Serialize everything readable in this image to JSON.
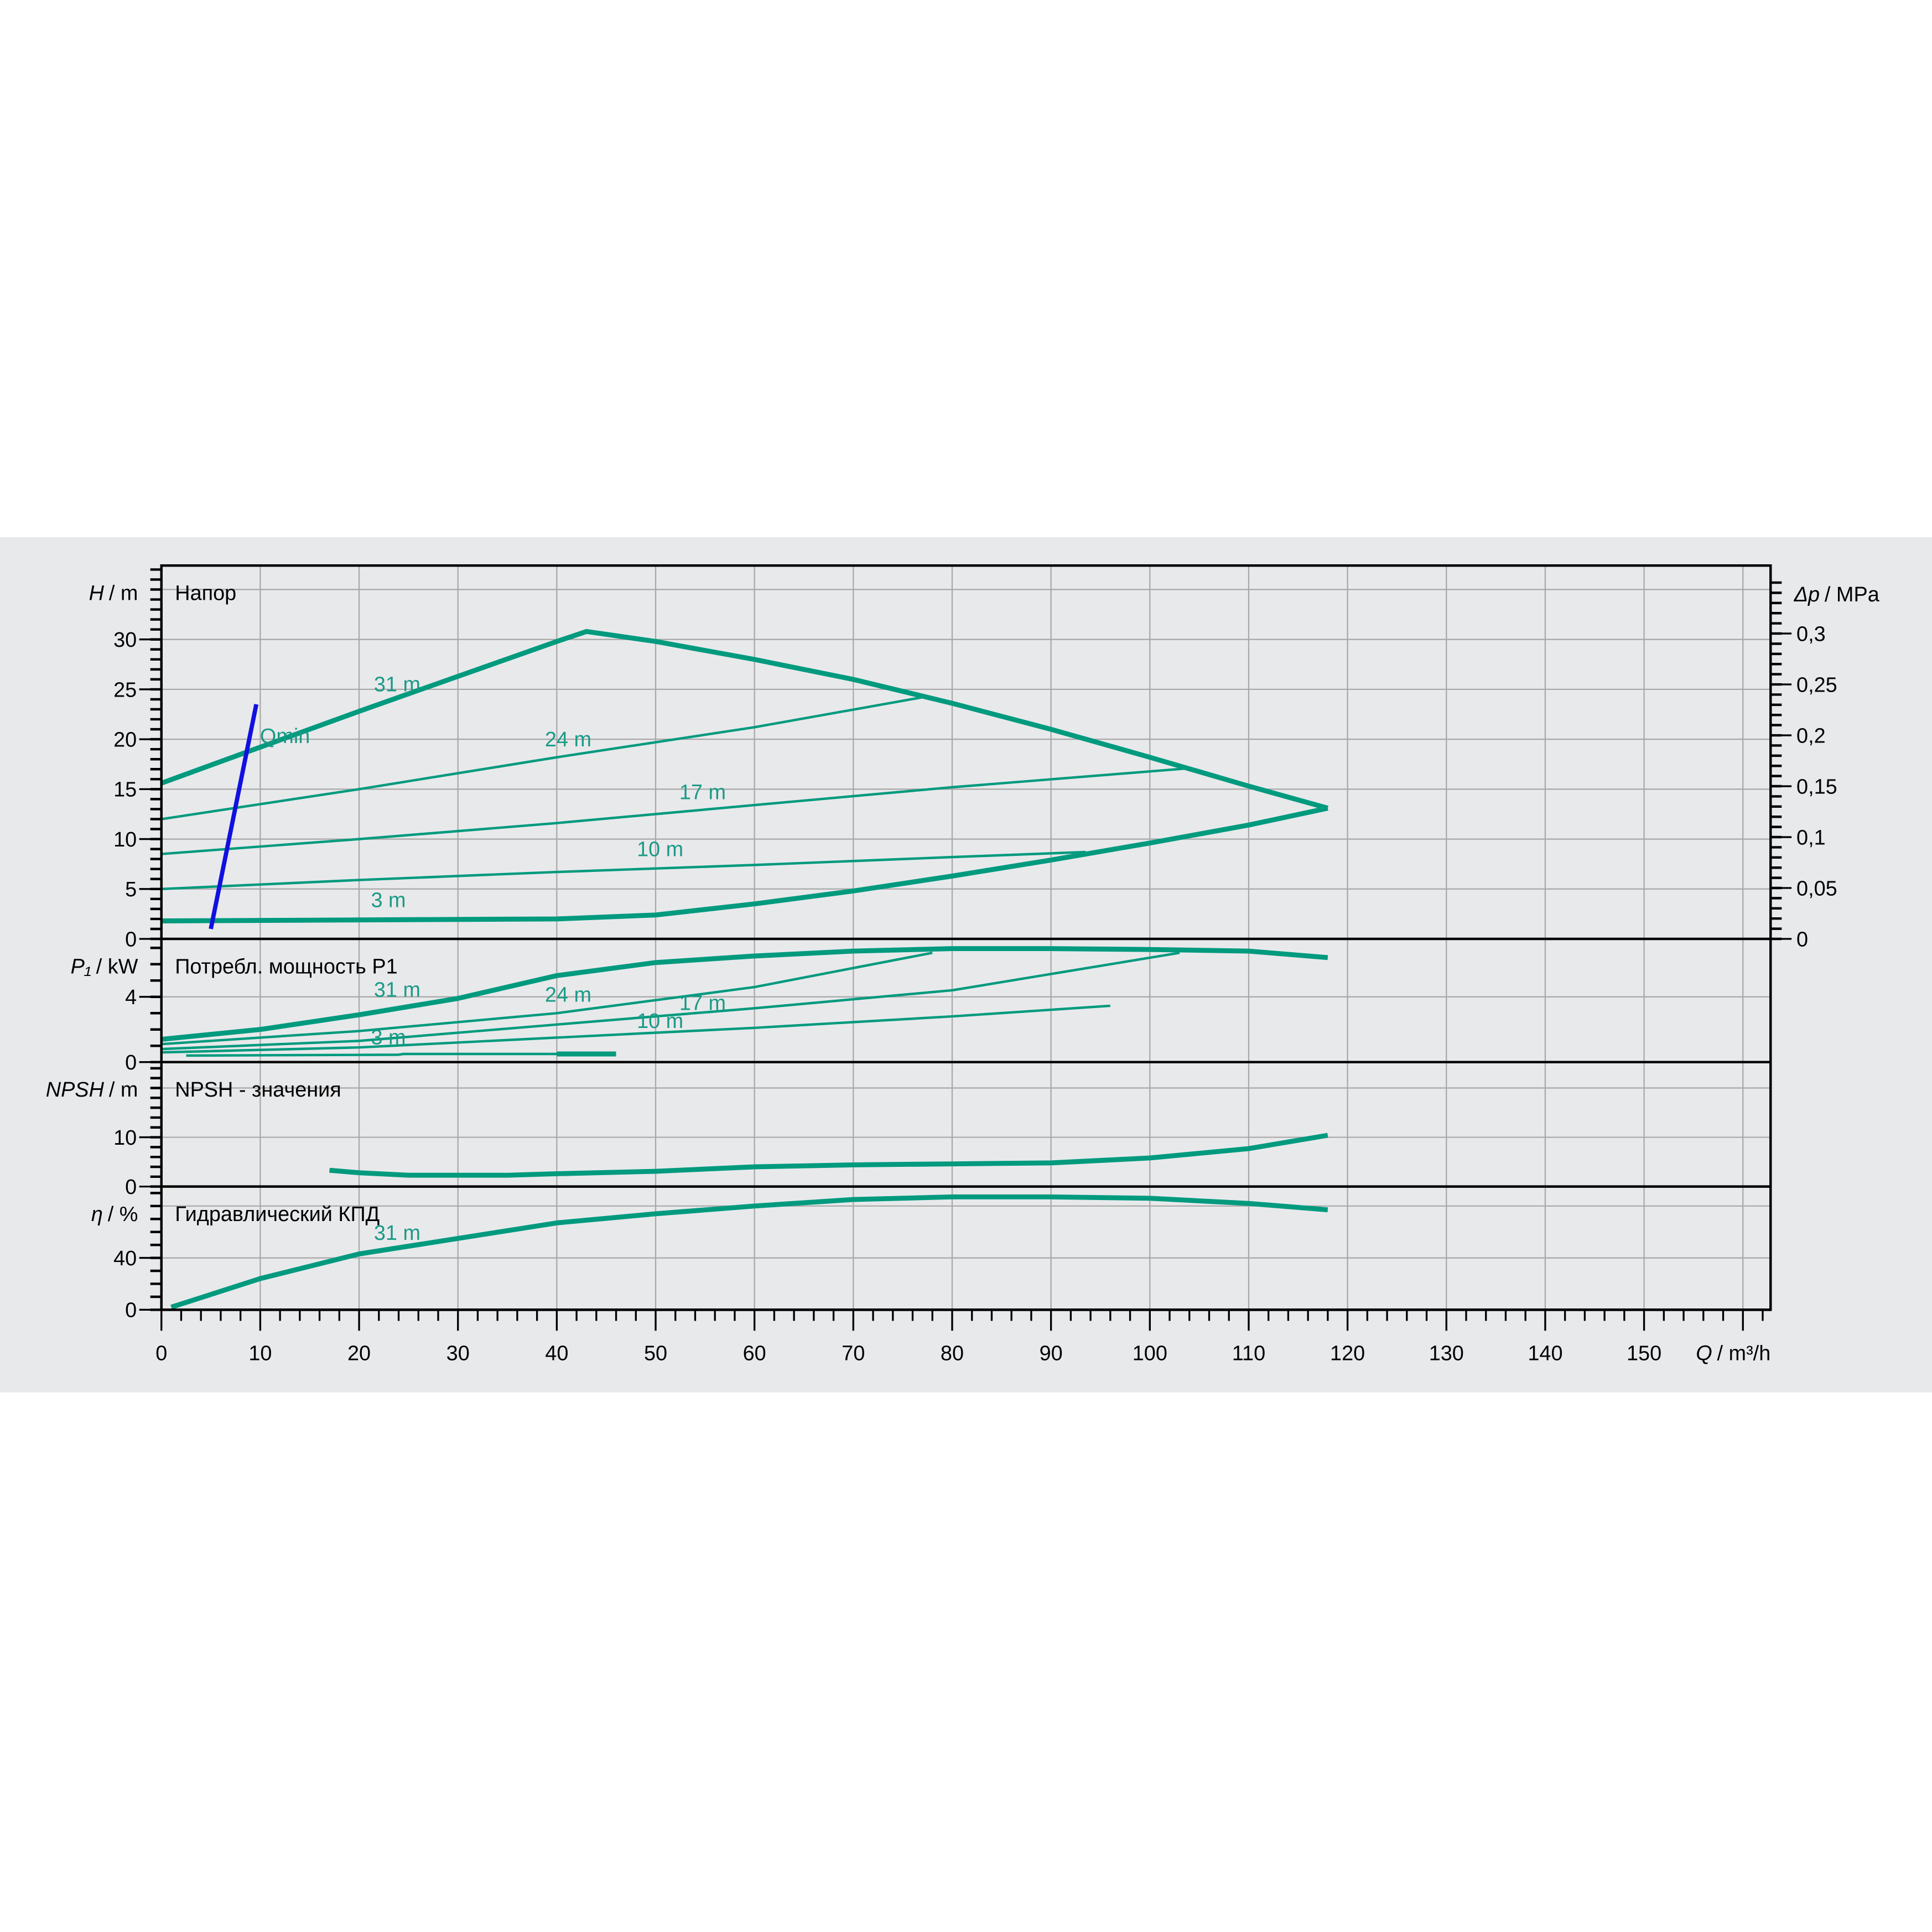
{
  "colors": {
    "curve": "#009a7e",
    "qmin": "#1010e0",
    "grid": "#a8a8a8",
    "panel_bg": "#e8e9eb"
  },
  "chart_data": {
    "type": "line",
    "x_axis": {
      "label_symbol": "Q",
      "label_unit": "/ m³/h",
      "range": [
        0,
        162.8
      ],
      "ticks": [
        0,
        10,
        20,
        30,
        40,
        50,
        60,
        70,
        80,
        90,
        100,
        110,
        120,
        130,
        140,
        150
      ],
      "grid": true
    },
    "panels": [
      {
        "id": "head",
        "title": "Напор",
        "ylabel_symbol": "H",
        "ylabel_unit": "/ m",
        "ylim": [
          0,
          37.4
        ],
        "ticks": [
          0,
          5,
          10,
          15,
          20,
          25,
          30
        ],
        "minor": 1,
        "grid_step": 5,
        "right_axis": {
          "label_symbol": "Δp",
          "label_unit": "/ MPa",
          "ticks": [
            "0",
            "0,05",
            "0,1",
            "0,15",
            "0,2",
            "0,25",
            "0,3"
          ],
          "values": [
            0,
            0.05,
            0.1,
            0.15,
            0.2,
            0.25,
            0.3
          ]
        },
        "series": [
          {
            "name": "31 m",
            "thick": true,
            "points": [
              [
                0,
                15.6
              ],
              [
                10,
                19.2
              ],
              [
                20,
                22.8
              ],
              [
                30,
                26.3
              ],
              [
                40,
                29.8
              ],
              [
                43,
                30.8
              ],
              [
                50,
                29.8
              ],
              [
                60,
                28
              ],
              [
                70,
                26
              ],
              [
                80,
                23.6
              ],
              [
                90,
                21
              ],
              [
                100,
                18.2
              ],
              [
                110,
                15.3
              ],
              [
                118,
                13.1
              ]
            ]
          },
          {
            "name": "24 m",
            "thick": false,
            "points": [
              [
                0,
                12
              ],
              [
                20,
                15
              ],
              [
                40,
                18.2
              ],
              [
                60,
                21.2
              ],
              [
                77,
                24.2
              ]
            ]
          },
          {
            "name": "17 m",
            "thick": false,
            "points": [
              [
                0,
                8.5
              ],
              [
                20,
                10
              ],
              [
                40,
                11.6
              ],
              [
                60,
                13.4
              ],
              [
                80,
                15.2
              ],
              [
                104,
                17.1
              ]
            ]
          },
          {
            "name": "10 m",
            "thick": false,
            "points": [
              [
                0,
                5
              ],
              [
                20,
                5.9
              ],
              [
                40,
                6.7
              ],
              [
                60,
                7.4
              ],
              [
                80,
                8.2
              ],
              [
                93.5,
                8.7
              ]
            ]
          },
          {
            "name": "3 m",
            "thick": true,
            "points": [
              [
                0,
                1.8
              ],
              [
                40,
                2
              ],
              [
                50,
                2.4
              ],
              [
                60,
                3.5
              ],
              [
                70,
                4.8
              ],
              [
                80,
                6.3
              ],
              [
                90,
                7.9
              ],
              [
                100,
                9.6
              ],
              [
                110,
                11.4
              ],
              [
                118,
                13.1
              ]
            ]
          }
        ],
        "qmin": {
          "name": "Qmin",
          "points": [
            [
              5,
              1
            ],
            [
              9.6,
              23.5
            ]
          ]
        },
        "curve_labels": [
          {
            "text": "31 m",
            "at": [
              21.5,
              24.8
            ]
          },
          {
            "text": "24 m",
            "at": [
              38.8,
              19.3
            ]
          },
          {
            "text": "17 m",
            "at": [
              52.4,
              14
            ]
          },
          {
            "text": "10 m",
            "at": [
              48.1,
              8.3
            ]
          },
          {
            "text": "3 m",
            "at": [
              21.2,
              3.2
            ]
          }
        ]
      },
      {
        "id": "power",
        "title": "Потребл. мощность P1",
        "ylabel_symbol": "P₁",
        "ylabel_unit": "/ kW",
        "ylim": [
          0,
          7.55
        ],
        "ticks": [
          0,
          4
        ],
        "minor": 1,
        "grid_step": 4,
        "series": [
          {
            "name": "31 m",
            "thick": true,
            "points": [
              [
                0,
                1.4
              ],
              [
                10,
                2
              ],
              [
                20,
                2.9
              ],
              [
                30,
                3.9
              ],
              [
                40,
                5.3
              ],
              [
                50,
                6.1
              ],
              [
                60,
                6.5
              ],
              [
                70,
                6.8
              ],
              [
                80,
                6.95
              ],
              [
                90,
                6.95
              ],
              [
                100,
                6.9
              ],
              [
                110,
                6.8
              ],
              [
                118,
                6.4
              ]
            ]
          },
          {
            "name": "24 m",
            "thick": false,
            "points": [
              [
                0,
                1.1
              ],
              [
                20,
                1.9
              ],
              [
                40,
                3
              ],
              [
                60,
                4.6
              ],
              [
                78,
                6.7
              ]
            ]
          },
          {
            "name": "17 m",
            "thick": false,
            "points": [
              [
                0,
                0.8
              ],
              [
                20,
                1.3
              ],
              [
                40,
                2.3
              ],
              [
                60,
                3.3
              ],
              [
                80,
                4.4
              ],
              [
                103,
                6.7
              ]
            ]
          },
          {
            "name": "10 m",
            "thick": false,
            "points": [
              [
                0,
                0.6
              ],
              [
                20,
                0.9
              ],
              [
                40,
                1.5
              ],
              [
                60,
                2.1
              ],
              [
                80,
                2.8
              ],
              [
                96,
                3.45
              ]
            ]
          },
          {
            "name": "3 m",
            "thick": false,
            "points": [
              [
                2.5,
                0.4
              ],
              [
                24,
                0.45
              ],
              [
                24.5,
                0.5
              ],
              [
                40,
                0.5
              ]
            ]
          },
          {
            "name": "3 m end",
            "thick": true,
            "points": [
              [
                40,
                0.5
              ],
              [
                46,
                0.5
              ]
            ]
          }
        ],
        "curve_labels": [
          {
            "text": "31 m",
            "at": [
              21.5,
              4
            ]
          },
          {
            "text": "24 m",
            "at": [
              38.8,
              3.7
            ]
          },
          {
            "text": "17 m",
            "at": [
              52.4,
              3.2
            ]
          },
          {
            "text": "10 m",
            "at": [
              48.1,
              2.1
            ]
          },
          {
            "text": "3 m",
            "at": [
              21.2,
              1.1
            ]
          }
        ]
      },
      {
        "id": "npsh",
        "title": "NPSH - значения",
        "ylabel_symbol": "NPSH",
        "ylabel_unit": "/ m",
        "ylim": [
          0,
          25.25
        ],
        "ticks": [
          0,
          10
        ],
        "minor": 2,
        "grid_step": 10,
        "series": [
          {
            "name": "31 m",
            "thick": true,
            "points": [
              [
                17,
                3.3
              ],
              [
                20,
                2.8
              ],
              [
                25,
                2.3
              ],
              [
                35,
                2.3
              ],
              [
                40,
                2.6
              ],
              [
                50,
                3.1
              ],
              [
                60,
                4
              ],
              [
                70,
                4.4
              ],
              [
                80,
                4.6
              ],
              [
                90,
                4.8
              ],
              [
                100,
                5.8
              ],
              [
                110,
                7.7
              ],
              [
                118,
                10.4
              ]
            ]
          }
        ],
        "curve_labels": []
      },
      {
        "id": "efficiency",
        "title": "Гидравлический КПД",
        "ylabel_symbol": "η",
        "ylabel_unit": "/ %",
        "ylim": [
          0,
          95
        ],
        "ticks": [
          0,
          40
        ],
        "minor": 10,
        "grid_step": 40,
        "series": [
          {
            "name": "31 m",
            "thick": true,
            "points": [
              [
                1,
                2
              ],
              [
                10,
                24
              ],
              [
                20,
                43
              ],
              [
                30,
                55
              ],
              [
                40,
                67
              ],
              [
                50,
                74
              ],
              [
                60,
                80
              ],
              [
                70,
                85
              ],
              [
                80,
                87
              ],
              [
                90,
                87
              ],
              [
                100,
                86
              ],
              [
                110,
                82
              ],
              [
                118,
                77
              ]
            ]
          }
        ],
        "curve_labels": [
          {
            "text": "31 m",
            "at": [
              21.5,
              54
            ]
          }
        ]
      }
    ]
  }
}
